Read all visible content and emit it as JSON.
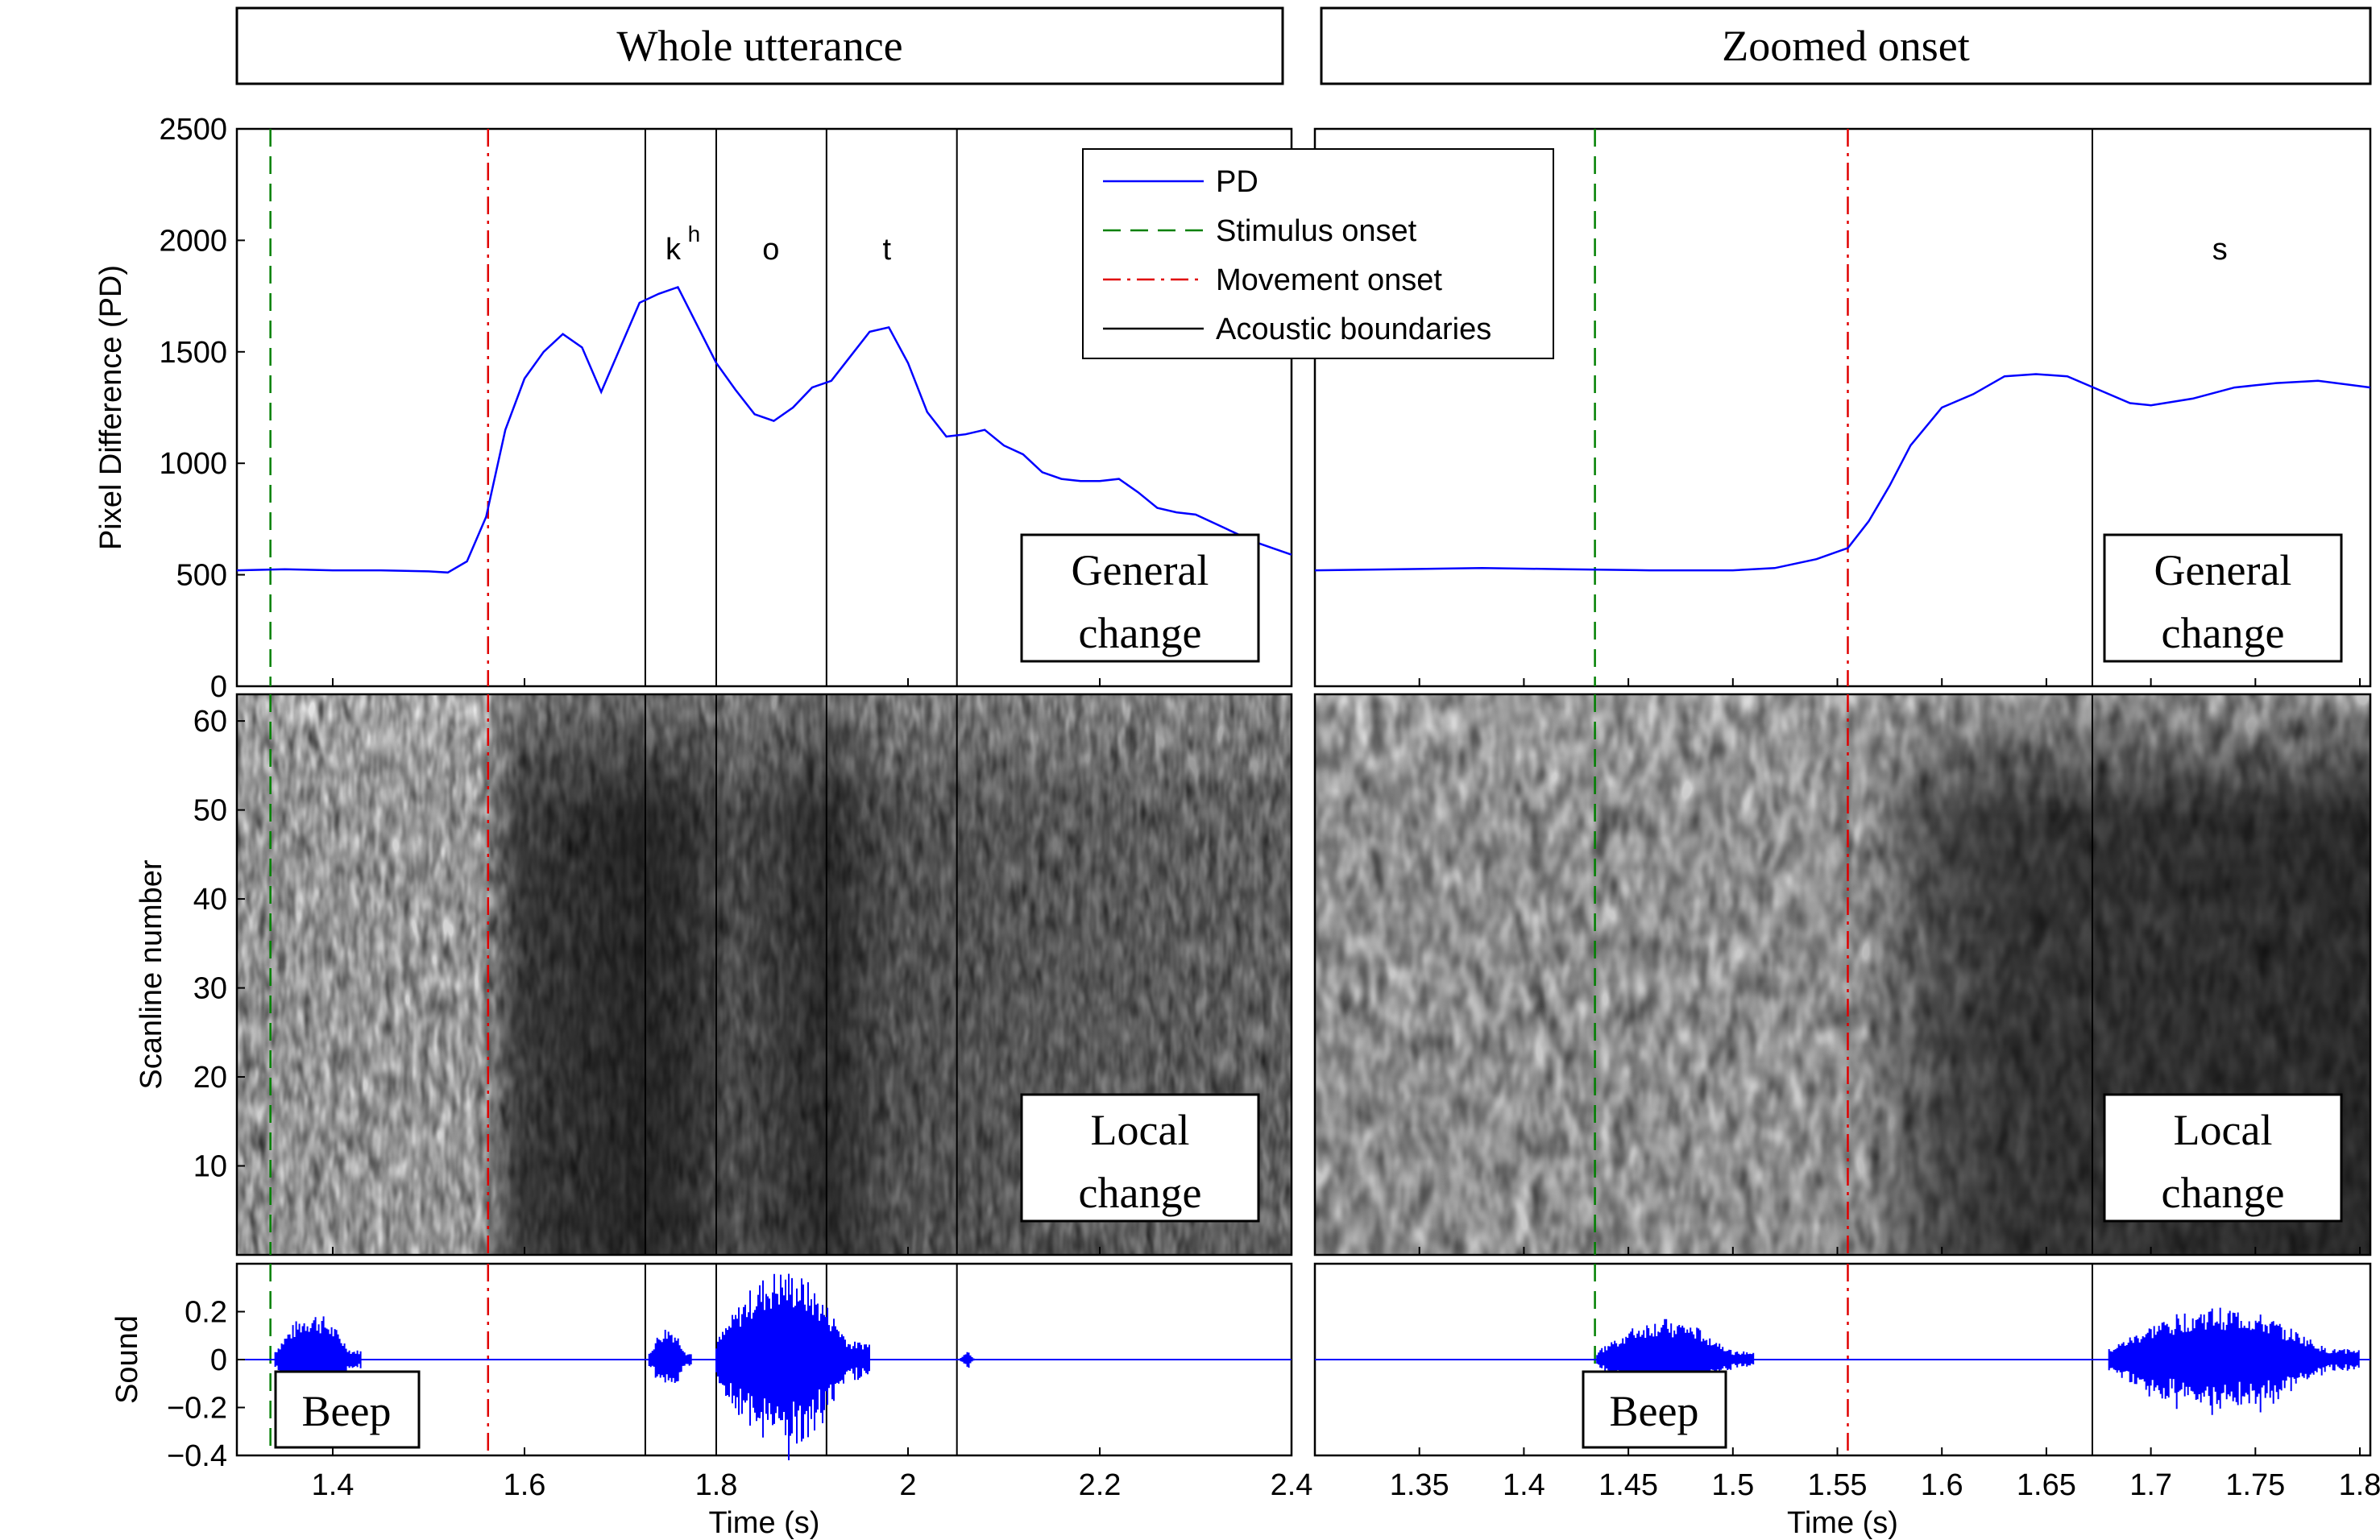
{
  "colors": {
    "pd": "#0000ff",
    "sound": "#0000ff",
    "stimulus": "#008000",
    "movement": "#e00000",
    "boundary": "#000000",
    "frame": "#000000"
  },
  "panel_titles": [
    "Whole utterance",
    "Zoomed onset"
  ],
  "annotations": {
    "general_change": [
      "General",
      "change"
    ],
    "local_change": [
      "Local",
      "change"
    ],
    "beep": "Beep"
  },
  "chart_data": [
    {
      "type": "line",
      "panel": "Whole utterance",
      "xlim": [
        1.3,
        2.4
      ],
      "x_ticks": [
        1.4,
        1.6,
        1.8,
        2,
        2.2,
        2.4
      ],
      "x_tick_labels": [
        "1.4",
        "1.6",
        "1.8",
        "2",
        "2.2",
        "2.4"
      ],
      "xlabel": "Time (s)",
      "events": {
        "stimulus_onset": 1.335,
        "movement_onset": 1.562,
        "acoustic_boundaries": [
          1.726,
          1.8,
          1.915,
          2.051
        ]
      },
      "segment_labels": [
        {
          "text": "k",
          "sup": "h",
          "x": 1.755
        },
        {
          "text": "o",
          "x": 1.857
        },
        {
          "text": "t",
          "x": 1.978
        }
      ],
      "pd": {
        "ylabel": "Pixel Difference (PD)",
        "ylim": [
          0,
          2500
        ],
        "y_ticks": [
          0,
          500,
          1000,
          1500,
          2000,
          2500
        ],
        "x": [
          1.3,
          1.35,
          1.4,
          1.45,
          1.5,
          1.52,
          1.54,
          1.56,
          1.58,
          1.6,
          1.62,
          1.64,
          1.66,
          1.68,
          1.7,
          1.72,
          1.74,
          1.76,
          1.78,
          1.8,
          1.82,
          1.84,
          1.86,
          1.88,
          1.9,
          1.92,
          1.94,
          1.96,
          1.98,
          2.0,
          2.02,
          2.04,
          2.06,
          2.08,
          2.1,
          2.12,
          2.14,
          2.16,
          2.18,
          2.2,
          2.22,
          2.24,
          2.26,
          2.28,
          2.3,
          2.32,
          2.34,
          2.36,
          2.38,
          2.4
        ],
        "y": [
          520,
          525,
          520,
          520,
          515,
          510,
          560,
          760,
          1150,
          1380,
          1500,
          1580,
          1520,
          1320,
          1520,
          1720,
          1760,
          1790,
          1620,
          1450,
          1330,
          1220,
          1190,
          1250,
          1340,
          1370,
          1480,
          1590,
          1610,
          1450,
          1230,
          1120,
          1130,
          1150,
          1080,
          1040,
          960,
          930,
          920,
          920,
          930,
          870,
          800,
          780,
          770,
          730,
          690,
          650,
          620,
          590
        ]
      },
      "scanlines": {
        "ylabel": "Scanline number",
        "ylim": [
          0,
          63
        ],
        "y_ticks": [
          10,
          20,
          30,
          40,
          50,
          60
        ]
      },
      "sound": {
        "ylabel": "Sound",
        "ylim": [
          -0.4,
          0.4
        ],
        "y_ticks": [
          -0.4,
          -0.2,
          0,
          0.2
        ],
        "y_tick_labels": [
          "−0.4",
          "−0.2",
          "0",
          "0.2"
        ],
        "bursts": [
          {
            "start": 1.34,
            "end": 1.43,
            "amp": 0.2
          },
          {
            "start": 1.73,
            "end": 1.775,
            "amp": 0.14
          },
          {
            "start": 1.8,
            "end": 1.96,
            "amp": 0.38
          },
          {
            "start": 2.055,
            "end": 2.07,
            "amp": 0.04
          }
        ]
      }
    },
    {
      "type": "line",
      "panel": "Zoomed onset",
      "xlim": [
        1.3,
        1.805
      ],
      "x_ticks": [
        1.35,
        1.4,
        1.45,
        1.5,
        1.55,
        1.6,
        1.65,
        1.7,
        1.75,
        1.8
      ],
      "x_tick_labels": [
        "1.35",
        "1.4",
        "1.45",
        "1.5",
        "1.55",
        "1.6",
        "1.65",
        "1.7",
        "1.75",
        "1.8"
      ],
      "xlabel": "Time (s)",
      "events": {
        "stimulus_onset": 1.434,
        "movement_onset": 1.555,
        "acoustic_boundaries": [
          1.672
        ]
      },
      "segment_labels": [
        {
          "text": "s",
          "x": 1.733
        }
      ],
      "legend": {
        "entries": [
          {
            "label": "PD",
            "style": "solid",
            "color": "#0000ff"
          },
          {
            "label": "Stimulus onset",
            "style": "dashed",
            "color": "#008000"
          },
          {
            "label": "Movement onset",
            "style": "dashdot",
            "color": "#e00000"
          },
          {
            "label": "Acoustic boundaries",
            "style": "solid",
            "color": "#000000"
          }
        ]
      },
      "pd": {
        "ylim": [
          0,
          2500
        ],
        "x": [
          1.3,
          1.34,
          1.38,
          1.42,
          1.46,
          1.5,
          1.52,
          1.54,
          1.555,
          1.565,
          1.575,
          1.585,
          1.6,
          1.615,
          1.63,
          1.645,
          1.66,
          1.675,
          1.69,
          1.7,
          1.72,
          1.74,
          1.76,
          1.78,
          1.805
        ],
        "y": [
          520,
          525,
          530,
          525,
          520,
          520,
          530,
          570,
          620,
          740,
          900,
          1080,
          1250,
          1310,
          1390,
          1400,
          1390,
          1330,
          1270,
          1260,
          1290,
          1340,
          1360,
          1370,
          1340
        ]
      },
      "scanlines": {
        "ylim": [
          0,
          63
        ]
      },
      "sound": {
        "ylim": [
          -0.4,
          0.4
        ],
        "bursts": [
          {
            "start": 1.435,
            "end": 1.51,
            "amp": 0.17
          },
          {
            "start": 1.68,
            "end": 1.8,
            "amp": 0.22
          }
        ]
      }
    }
  ]
}
